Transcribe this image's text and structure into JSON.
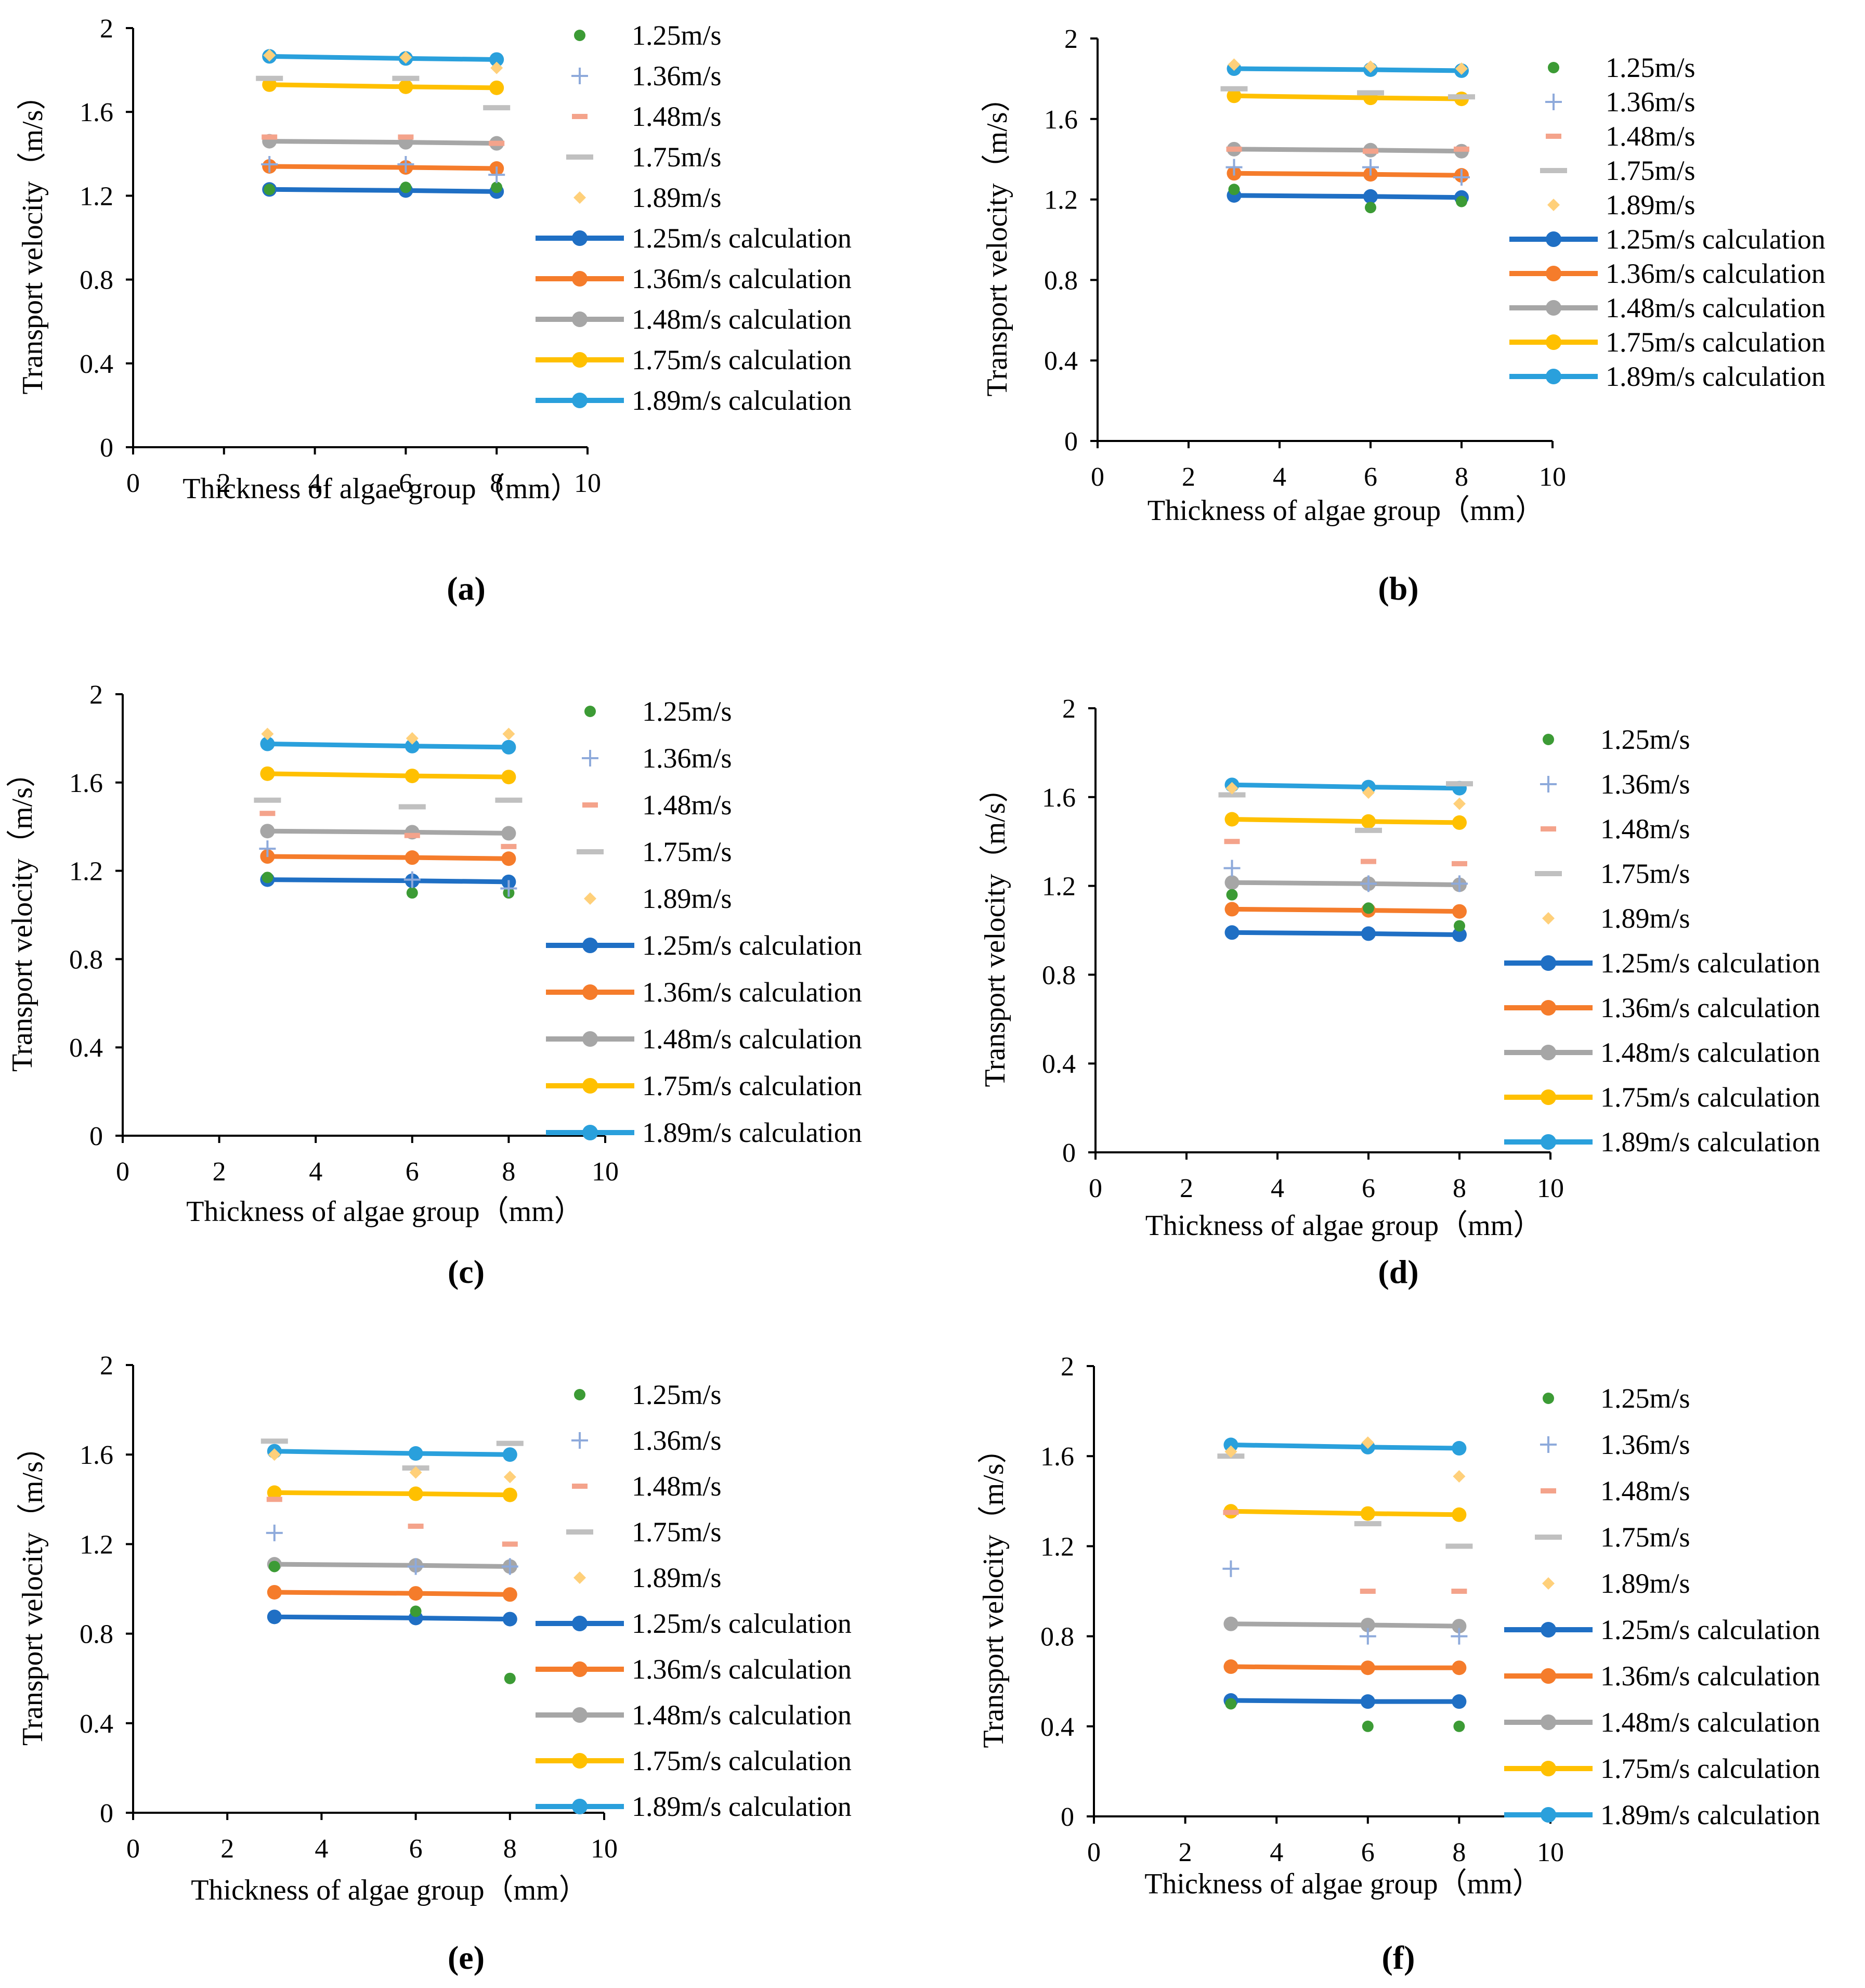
{
  "figure": {
    "colors": {
      "s125": "#1f6fc4",
      "s136": "#f57c2b",
      "s148": "#a6a6a6",
      "s175": "#ffc000",
      "s189": "#2aa0dc",
      "m125": "#3c9b35",
      "m136": "#8eaadb",
      "m148": "#f4a38b",
      "m175": "#c0c0c0",
      "m189": "#ffd07a",
      "axis": "#000000"
    }
  },
  "chart_data": [
    {
      "type": "scatter",
      "caption": "(a)",
      "xlabel": "Thickness of algae group（mm）",
      "ylabel": "Transport velocity（m/s）",
      "xlim": [
        0,
        10
      ],
      "ylim": [
        0,
        2
      ],
      "xticks": [
        "0",
        "2",
        "4",
        "6",
        "8",
        "10"
      ],
      "yticks": [
        "0",
        "0.4",
        "0.8",
        "1.2",
        "1.6",
        "2"
      ],
      "measured": [
        {
          "name": "1.25m/s",
          "marker": "dot",
          "color_key": "m125",
          "x": [
            3,
            6,
            8
          ],
          "y": [
            1.23,
            1.24,
            1.24
          ]
        },
        {
          "name": "1.36m/s",
          "marker": "plus",
          "color_key": "m136",
          "x": [
            3,
            6,
            8
          ],
          "y": [
            1.35,
            1.35,
            1.3
          ]
        },
        {
          "name": "1.48m/s",
          "marker": "dash",
          "color_key": "m148",
          "x": [
            3,
            6,
            8
          ],
          "y": [
            1.48,
            1.48,
            1.45
          ]
        },
        {
          "name": "1.75m/s",
          "marker": "dash",
          "color_key": "m175",
          "x": [
            3,
            6,
            8
          ],
          "y": [
            1.76,
            1.76,
            1.62
          ]
        },
        {
          "name": "1.89m/s",
          "marker": "diamond",
          "color_key": "m189",
          "x": [
            3,
            6,
            8
          ],
          "y": [
            1.87,
            1.86,
            1.81
          ]
        }
      ],
      "calculated": [
        {
          "name": "1.25m/s calculation",
          "color_key": "s125",
          "x": [
            3,
            6,
            8
          ],
          "y": [
            1.23,
            1.225,
            1.22
          ]
        },
        {
          "name": "1.36m/s calculation",
          "color_key": "s136",
          "x": [
            3,
            6,
            8
          ],
          "y": [
            1.34,
            1.335,
            1.33
          ]
        },
        {
          "name": "1.48m/s calculation",
          "color_key": "s148",
          "x": [
            3,
            6,
            8
          ],
          "y": [
            1.46,
            1.455,
            1.45
          ]
        },
        {
          "name": "1.75m/s calculation",
          "color_key": "s175",
          "x": [
            3,
            6,
            8
          ],
          "y": [
            1.73,
            1.72,
            1.715
          ]
        },
        {
          "name": "1.89m/s calculation",
          "color_key": "s189",
          "x": [
            3,
            6,
            8
          ],
          "y": [
            1.865,
            1.855,
            1.85
          ]
        }
      ]
    },
    {
      "type": "scatter",
      "caption": "(b)",
      "xlabel": "Thickness of algae group（mm）",
      "ylabel": "Transport velocity（m/s）",
      "xlim": [
        0,
        10
      ],
      "ylim": [
        0,
        2
      ],
      "xticks": [
        "0",
        "2",
        "4",
        "6",
        "8",
        "10"
      ],
      "yticks": [
        "0",
        "0.4",
        "0.8",
        "1.2",
        "1.6",
        "2"
      ],
      "measured": [
        {
          "name": "1.25m/s",
          "marker": "dot",
          "color_key": "m125",
          "x": [
            3,
            6,
            8
          ],
          "y": [
            1.25,
            1.16,
            1.19
          ]
        },
        {
          "name": "1.36m/s",
          "marker": "plus",
          "color_key": "m136",
          "x": [
            3,
            6,
            8
          ],
          "y": [
            1.36,
            1.36,
            1.31
          ]
        },
        {
          "name": "1.48m/s",
          "marker": "dash",
          "color_key": "m148",
          "x": [
            3,
            6,
            8
          ],
          "y": [
            1.45,
            1.44,
            1.45
          ]
        },
        {
          "name": "1.75m/s",
          "marker": "dash",
          "color_key": "m175",
          "x": [
            3,
            6,
            8
          ],
          "y": [
            1.75,
            1.73,
            1.71
          ]
        },
        {
          "name": "1.89m/s",
          "marker": "diamond",
          "color_key": "m189",
          "x": [
            3,
            6,
            8
          ],
          "y": [
            1.87,
            1.86,
            1.85
          ]
        }
      ],
      "calculated": [
        {
          "name": "1.25m/s calculation",
          "color_key": "s125",
          "x": [
            3,
            6,
            8
          ],
          "y": [
            1.22,
            1.215,
            1.21
          ]
        },
        {
          "name": "1.36m/s calculation",
          "color_key": "s136",
          "x": [
            3,
            6,
            8
          ],
          "y": [
            1.33,
            1.325,
            1.32
          ]
        },
        {
          "name": "1.48m/s calculation",
          "color_key": "s148",
          "x": [
            3,
            6,
            8
          ],
          "y": [
            1.45,
            1.445,
            1.44
          ]
        },
        {
          "name": "1.75m/s calculation",
          "color_key": "s175",
          "x": [
            3,
            6,
            8
          ],
          "y": [
            1.715,
            1.705,
            1.7
          ]
        },
        {
          "name": "1.89m/s calculation",
          "color_key": "s189",
          "x": [
            3,
            6,
            8
          ],
          "y": [
            1.85,
            1.845,
            1.84
          ]
        }
      ]
    },
    {
      "type": "scatter",
      "caption": "(c)",
      "xlabel": "Thickness of algae group（mm）",
      "ylabel": "Transport velocity（m/s）",
      "xlim": [
        0,
        10
      ],
      "ylim": [
        0,
        2
      ],
      "xticks": [
        "0",
        "2",
        "4",
        "6",
        "8",
        "10"
      ],
      "yticks": [
        "0",
        "0.4",
        "0.8",
        "1.2",
        "1.6",
        "2"
      ],
      "measured": [
        {
          "name": "1.25m/s",
          "marker": "dot",
          "color_key": "m125",
          "x": [
            3,
            6,
            8
          ],
          "y": [
            1.17,
            1.1,
            1.1
          ]
        },
        {
          "name": "1.36m/s",
          "marker": "plus",
          "color_key": "m136",
          "x": [
            3,
            6,
            8
          ],
          "y": [
            1.3,
            1.16,
            1.12
          ]
        },
        {
          "name": "1.48m/s",
          "marker": "dash",
          "color_key": "m148",
          "x": [
            3,
            6,
            8
          ],
          "y": [
            1.46,
            1.36,
            1.31
          ]
        },
        {
          "name": "1.75m/s",
          "marker": "dash",
          "color_key": "m175",
          "x": [
            3,
            6,
            8
          ],
          "y": [
            1.52,
            1.49,
            1.52
          ]
        },
        {
          "name": "1.89m/s",
          "marker": "diamond",
          "color_key": "m189",
          "x": [
            3,
            6,
            8
          ],
          "y": [
            1.82,
            1.8,
            1.82
          ]
        }
      ],
      "calculated": [
        {
          "name": "1.25m/s calculation",
          "color_key": "s125",
          "x": [
            3,
            6,
            8
          ],
          "y": [
            1.16,
            1.155,
            1.15
          ]
        },
        {
          "name": "1.36m/s calculation",
          "color_key": "s136",
          "x": [
            3,
            6,
            8
          ],
          "y": [
            1.265,
            1.26,
            1.255
          ]
        },
        {
          "name": "1.48m/s calculation",
          "color_key": "s148",
          "x": [
            3,
            6,
            8
          ],
          "y": [
            1.38,
            1.375,
            1.37
          ]
        },
        {
          "name": "1.75m/s calculation",
          "color_key": "s175",
          "x": [
            3,
            6,
            8
          ],
          "y": [
            1.64,
            1.63,
            1.625
          ]
        },
        {
          "name": "1.89m/s calculation",
          "color_key": "s189",
          "x": [
            3,
            6,
            8
          ],
          "y": [
            1.775,
            1.765,
            1.76
          ]
        }
      ]
    },
    {
      "type": "scatter",
      "caption": "(d)",
      "xlabel": "Thickness of algae group（mm）",
      "ylabel": "Transport velocity（m/s）",
      "xlim": [
        0,
        10
      ],
      "ylim": [
        0,
        2
      ],
      "xticks": [
        "0",
        "2",
        "4",
        "6",
        "8",
        "10"
      ],
      "yticks": [
        "0",
        "0.4",
        "0.8",
        "1.2",
        "1.6",
        "2"
      ],
      "measured": [
        {
          "name": "1.25m/s",
          "marker": "dot",
          "color_key": "m125",
          "x": [
            3,
            6,
            8
          ],
          "y": [
            1.16,
            1.1,
            1.02
          ]
        },
        {
          "name": "1.36m/s",
          "marker": "plus",
          "color_key": "m136",
          "x": [
            3,
            6,
            8
          ],
          "y": [
            1.28,
            1.21,
            1.21
          ]
        },
        {
          "name": "1.48m/s",
          "marker": "dash",
          "color_key": "m148",
          "x": [
            3,
            6,
            8
          ],
          "y": [
            1.4,
            1.31,
            1.3
          ]
        },
        {
          "name": "1.75m/s",
          "marker": "dash",
          "color_key": "m175",
          "x": [
            3,
            6,
            8
          ],
          "y": [
            1.61,
            1.45,
            1.66
          ]
        },
        {
          "name": "1.89m/s",
          "marker": "diamond",
          "color_key": "m189",
          "x": [
            3,
            6,
            8
          ],
          "y": [
            1.64,
            1.62,
            1.57
          ]
        }
      ],
      "calculated": [
        {
          "name": "1.25m/s calculation",
          "color_key": "s125",
          "x": [
            3,
            6,
            8
          ],
          "y": [
            0.99,
            0.985,
            0.98
          ]
        },
        {
          "name": "1.36m/s calculation",
          "color_key": "s136",
          "x": [
            3,
            6,
            8
          ],
          "y": [
            1.095,
            1.09,
            1.085
          ]
        },
        {
          "name": "1.48m/s calculation",
          "color_key": "s148",
          "x": [
            3,
            6,
            8
          ],
          "y": [
            1.215,
            1.21,
            1.205
          ]
        },
        {
          "name": "1.75m/s calculation",
          "color_key": "s175",
          "x": [
            3,
            6,
            8
          ],
          "y": [
            1.5,
            1.49,
            1.485
          ]
        },
        {
          "name": "1.89m/s calculation",
          "color_key": "s189",
          "x": [
            3,
            6,
            8
          ],
          "y": [
            1.655,
            1.645,
            1.64
          ]
        }
      ]
    },
    {
      "type": "scatter",
      "caption": "(e)",
      "xlabel": "Thickness of algae group（mm）",
      "ylabel": "Transport velocity（m/s）",
      "xlim": [
        0,
        10
      ],
      "ylim": [
        0,
        2
      ],
      "xticks": [
        "0",
        "2",
        "4",
        "6",
        "8",
        "10"
      ],
      "yticks": [
        "0",
        "0.4",
        "0.8",
        "1.2",
        "1.6",
        "2"
      ],
      "measured": [
        {
          "name": "1.25m/s",
          "marker": "dot",
          "color_key": "m125",
          "x": [
            3,
            6,
            8
          ],
          "y": [
            1.1,
            0.9,
            0.6
          ]
        },
        {
          "name": "1.36m/s",
          "marker": "plus",
          "color_key": "m136",
          "x": [
            3,
            6,
            8
          ],
          "y": [
            1.25,
            1.1,
            1.1
          ]
        },
        {
          "name": "1.48m/s",
          "marker": "dash",
          "color_key": "m148",
          "x": [
            3,
            6,
            8
          ],
          "y": [
            1.4,
            1.28,
            1.2
          ]
        },
        {
          "name": "1.75m/s",
          "marker": "dash",
          "color_key": "m175",
          "x": [
            3,
            6,
            8
          ],
          "y": [
            1.66,
            1.54,
            1.65
          ]
        },
        {
          "name": "1.89m/s",
          "marker": "diamond",
          "color_key": "m189",
          "x": [
            3,
            6,
            8
          ],
          "y": [
            1.6,
            1.52,
            1.5
          ]
        }
      ],
      "calculated": [
        {
          "name": "1.25m/s calculation",
          "color_key": "s125",
          "x": [
            3,
            6,
            8
          ],
          "y": [
            0.875,
            0.87,
            0.865
          ]
        },
        {
          "name": "1.36m/s calculation",
          "color_key": "s136",
          "x": [
            3,
            6,
            8
          ],
          "y": [
            0.985,
            0.98,
            0.975
          ]
        },
        {
          "name": "1.48m/s calculation",
          "color_key": "s148",
          "x": [
            3,
            6,
            8
          ],
          "y": [
            1.11,
            1.105,
            1.1
          ]
        },
        {
          "name": "1.75m/s calculation",
          "color_key": "s175",
          "x": [
            3,
            6,
            8
          ],
          "y": [
            1.43,
            1.425,
            1.42
          ]
        },
        {
          "name": "1.89m/s calculation",
          "color_key": "s189",
          "x": [
            3,
            6,
            8
          ],
          "y": [
            1.615,
            1.605,
            1.6
          ]
        }
      ]
    },
    {
      "type": "scatter",
      "caption": "(f)",
      "xlabel": "Thickness of algae group（mm）",
      "ylabel": "Transport velocity（m/s）",
      "xlim": [
        0,
        10
      ],
      "ylim": [
        0,
        2
      ],
      "xticks": [
        "0",
        "2",
        "4",
        "6",
        "8",
        "10"
      ],
      "yticks": [
        "0",
        "0.4",
        "0.8",
        "1.2",
        "1.6",
        "2"
      ],
      "measured": [
        {
          "name": "1.25m/s",
          "marker": "dot",
          "color_key": "m125",
          "x": [
            3,
            6,
            8
          ],
          "y": [
            0.5,
            0.4,
            0.4
          ]
        },
        {
          "name": "1.36m/s",
          "marker": "plus",
          "color_key": "m136",
          "x": [
            3,
            6,
            8
          ],
          "y": [
            1.1,
            0.8,
            0.8
          ]
        },
        {
          "name": "1.48m/s",
          "marker": "dash",
          "color_key": "m148",
          "x": [
            3,
            6,
            8
          ],
          "y": [
            1.35,
            1.0,
            1.0
          ]
        },
        {
          "name": "1.75m/s",
          "marker": "dash",
          "color_key": "m175",
          "x": [
            3,
            6,
            8
          ],
          "y": [
            1.6,
            1.3,
            1.2
          ]
        },
        {
          "name": "1.89m/s",
          "marker": "diamond",
          "color_key": "m189",
          "x": [
            3,
            6,
            8
          ],
          "y": [
            1.62,
            1.66,
            1.51
          ]
        }
      ],
      "calculated": [
        {
          "name": "1.25m/s calculation",
          "color_key": "s125",
          "x": [
            3,
            6,
            8
          ],
          "y": [
            0.515,
            0.51,
            0.51
          ]
        },
        {
          "name": "1.36m/s calculation",
          "color_key": "s136",
          "x": [
            3,
            6,
            8
          ],
          "y": [
            0.665,
            0.66,
            0.66
          ]
        },
        {
          "name": "1.48m/s calculation",
          "color_key": "s148",
          "x": [
            3,
            6,
            8
          ],
          "y": [
            0.855,
            0.85,
            0.845
          ]
        },
        {
          "name": "1.75m/s calculation",
          "color_key": "s175",
          "x": [
            3,
            6,
            8
          ],
          "y": [
            1.355,
            1.345,
            1.34
          ]
        },
        {
          "name": "1.89m/s calculation",
          "color_key": "s189",
          "x": [
            3,
            6,
            8
          ],
          "y": [
            1.65,
            1.64,
            1.635
          ]
        }
      ]
    }
  ]
}
